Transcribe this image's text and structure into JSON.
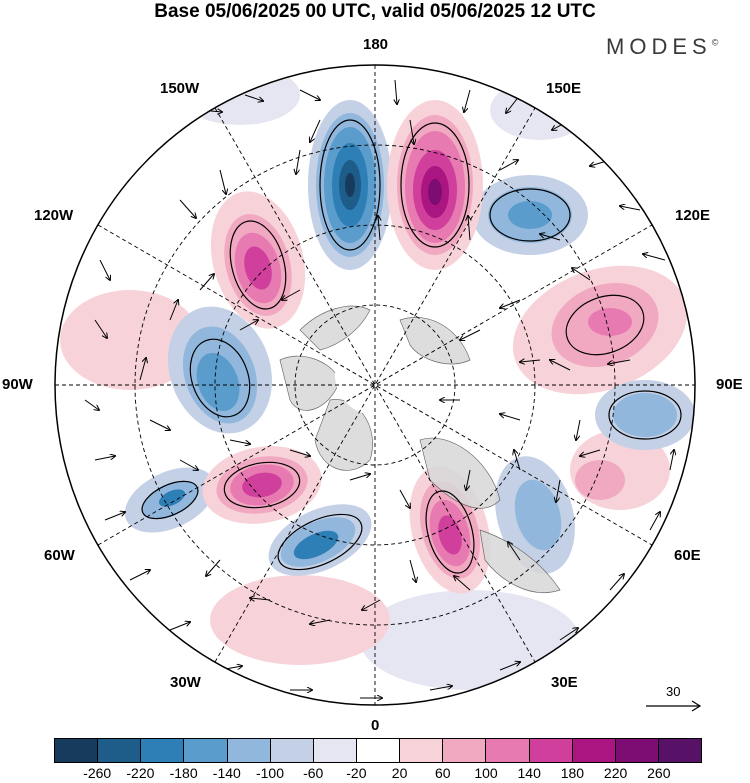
{
  "title": "Base 05/06/2025 00 UTC, valid 05/06/2025 12 UTC",
  "brand": {
    "name": "MODES",
    "mark": "©"
  },
  "longitude_labels": {
    "top": "180",
    "bottom": "0",
    "left": "90W",
    "right": "90E",
    "upper_left": "150W",
    "upper_right": "150E",
    "mid_left_upper": "120W",
    "mid_right_upper": "120E",
    "mid_left_lower": "60W",
    "mid_right_lower": "60E",
    "lower_left": "30W",
    "lower_right": "30E"
  },
  "vector_scale": {
    "label": "30",
    "icon": "arrow-icon"
  },
  "colorbar": {
    "colors": [
      "#173b5c",
      "#1e5c8a",
      "#2e7fb5",
      "#5a9ccb",
      "#91b7dc",
      "#c3d0e6",
      "#e6e6f2",
      "#ffffff",
      "#f7d3d9",
      "#f1a8c1",
      "#e77ab0",
      "#cf3f9b",
      "#ab1582",
      "#7d0c73",
      "#571166"
    ],
    "ticks": [
      "-260",
      "-220",
      "-180",
      "-140",
      "-100",
      "-60",
      "-20",
      "20",
      "60",
      "100",
      "140",
      "180",
      "220",
      "260"
    ]
  }
}
